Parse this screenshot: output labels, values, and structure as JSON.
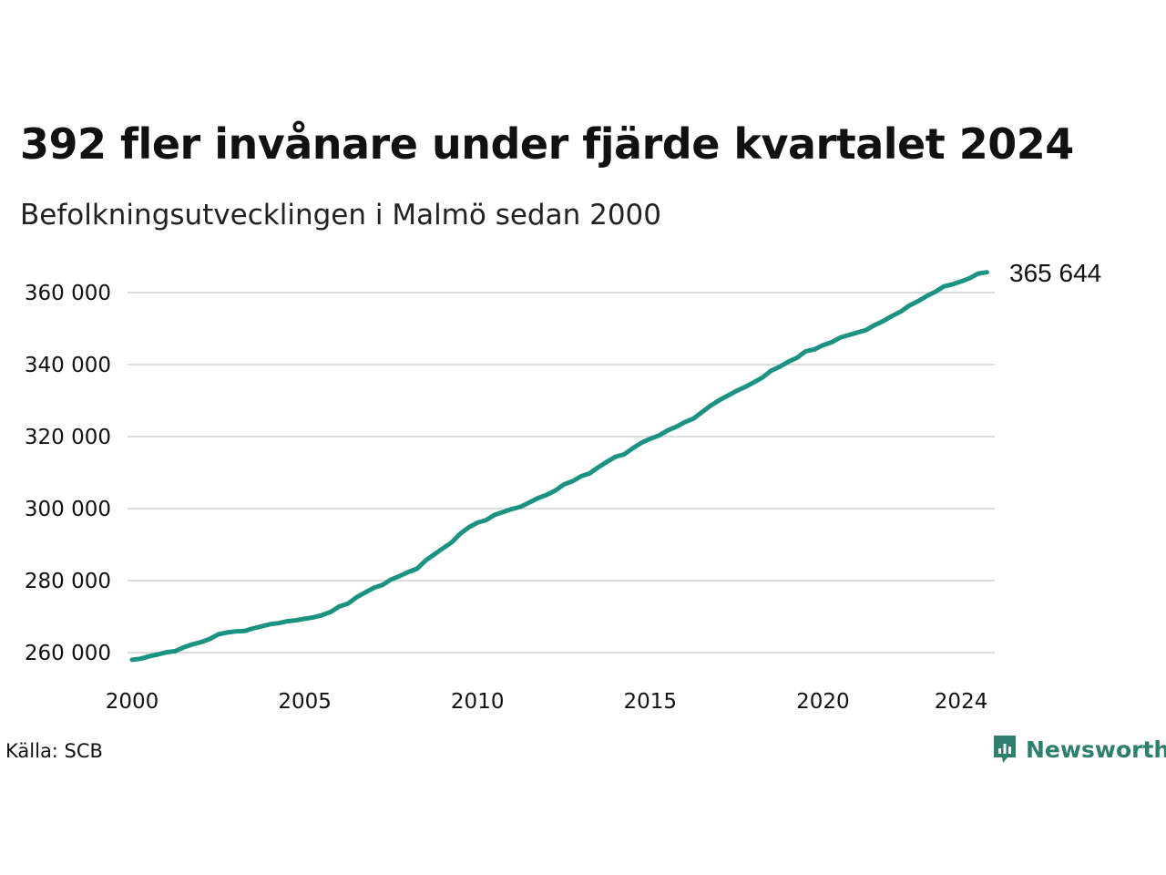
{
  "title": "392 fler invånare under fjärde kvartalet 2024",
  "subtitle": "Befolkningsutvecklingen i Malmö sedan 2000",
  "source": "Källa: SCB",
  "brand": {
    "name": "Newsworthy",
    "icon": "newsworthy-chart-bubble-icon",
    "color": "#2f7f6f"
  },
  "colors": {
    "line": "#1a9481",
    "grid": "#dddddd",
    "text": "#111111"
  },
  "chart_data": {
    "type": "line",
    "title": "392 fler invånare under fjärde kvartalet 2024",
    "subtitle": "Befolkningsutvecklingen i Malmö sedan 2000",
    "xlabel": "",
    "ylabel": "",
    "xlim": [
      2000.0,
      2025.0
    ],
    "ylim": [
      257000,
      366500
    ],
    "x_ticks": [
      2000,
      2005,
      2010,
      2015,
      2020,
      2024
    ],
    "x_tick_labels": [
      "2000",
      "2005",
      "2010",
      "2015",
      "2020",
      "2024"
    ],
    "y_ticks": [
      260000,
      280000,
      300000,
      320000,
      340000,
      360000
    ],
    "y_tick_labels": [
      "260 000",
      "280 000",
      "300 000",
      "320 000",
      "340 000",
      "360 000"
    ],
    "grid": true,
    "legend": "none",
    "end_label": "365 644",
    "series": [
      {
        "x": [
          2000.0,
          2000.25,
          2000.5,
          2000.75,
          2001.0,
          2001.25,
          2001.5,
          2001.75,
          2002.0,
          2002.25,
          2002.5,
          2002.75,
          2003.0,
          2003.25,
          2003.5,
          2003.75,
          2004.0,
          2004.25,
          2004.5,
          2004.75,
          2005.0,
          2005.25,
          2005.5,
          2005.75,
          2006.0,
          2006.25,
          2006.5,
          2006.75,
          2007.0,
          2007.25,
          2007.5,
          2007.75,
          2008.0,
          2008.25,
          2008.5,
          2008.75,
          2009.0,
          2009.25,
          2009.5,
          2009.75,
          2010.0,
          2010.25,
          2010.5,
          2010.75,
          2011.0,
          2011.25,
          2011.5,
          2011.75,
          2012.0,
          2012.25,
          2012.5,
          2012.75,
          2013.0,
          2013.25,
          2013.5,
          2013.75,
          2014.0,
          2014.25,
          2014.5,
          2014.75,
          2015.0,
          2015.25,
          2015.5,
          2015.75,
          2016.0,
          2016.25,
          2016.5,
          2016.75,
          2017.0,
          2017.25,
          2017.5,
          2017.75,
          2018.0,
          2018.25,
          2018.5,
          2018.75,
          2019.0,
          2019.25,
          2019.5,
          2019.75,
          2020.0,
          2020.25,
          2020.5,
          2020.75,
          2021.0,
          2021.25,
          2021.5,
          2021.75,
          2022.0,
          2022.25,
          2022.5,
          2022.75,
          2023.0,
          2023.25,
          2023.5,
          2023.75,
          2024.0,
          2024.25,
          2024.5,
          2024.75
        ],
        "y": [
          258000,
          258300,
          259000,
          259500,
          260100,
          260400,
          261500,
          262300,
          262900,
          263800,
          265100,
          265600,
          265900,
          266000,
          266700,
          267300,
          267900,
          268200,
          268700,
          269000,
          269400,
          269800,
          270400,
          271300,
          272800,
          273600,
          275400,
          276700,
          278000,
          278800,
          280300,
          281300,
          282400,
          283300,
          285600,
          287300,
          289000,
          290600,
          293000,
          294800,
          296100,
          296800,
          298300,
          299100,
          299900,
          300500,
          301700,
          302900,
          303800,
          305000,
          306700,
          307600,
          309000,
          309800,
          311500,
          313000,
          314400,
          315100,
          316800,
          318300,
          319400,
          320300,
          321700,
          322700,
          324000,
          325000,
          326800,
          328600,
          330100,
          331400,
          332700,
          333800,
          335100,
          336400,
          338300,
          339400,
          340800,
          341900,
          343700,
          344200,
          345400,
          346200,
          347500,
          348200,
          348900,
          349600,
          351000,
          352100,
          353500,
          354700,
          356400,
          357600,
          359000,
          360200,
          361700,
          362300,
          363100,
          364000,
          365300,
          365644
        ]
      }
    ]
  }
}
